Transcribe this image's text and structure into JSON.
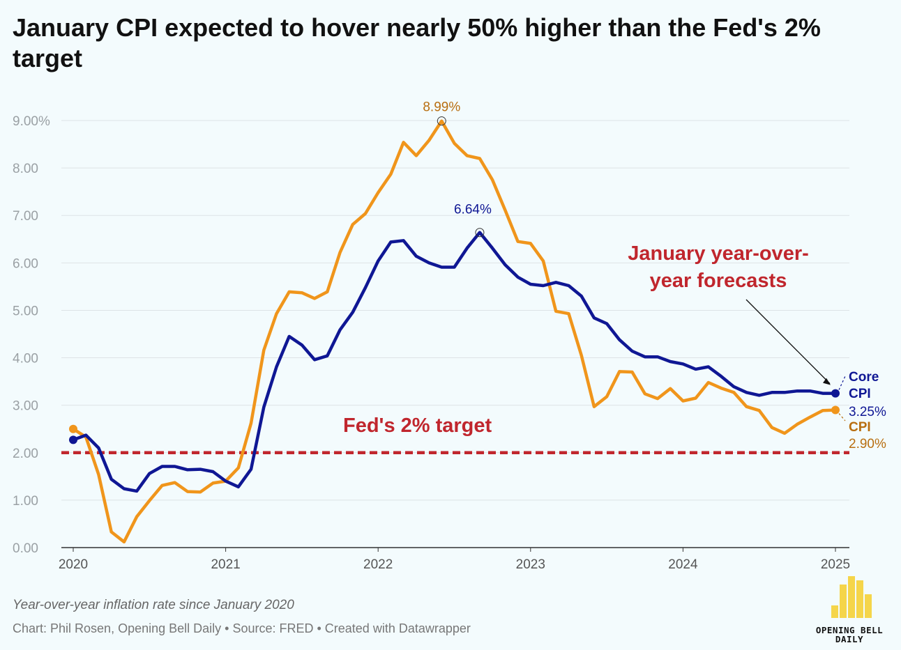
{
  "title": "January CPI expected to hover nearly 50% higher than the Fed's 2% target",
  "subtitle": "Year-over-year inflation rate since January 2020",
  "source": "Chart: Phil Rosen, Opening Bell Daily • Source: FRED • Created with Datawrapper",
  "logo": {
    "line1": "OPENING BELL",
    "line2": "DAILY"
  },
  "colors": {
    "cpi": "#f0951b",
    "core": "#0f1794",
    "target": "#c0262d",
    "text_gray": "#9aa0a4",
    "background": "#f3fbfd"
  },
  "chart_data": {
    "type": "line",
    "title": "January CPI expected to hover nearly 50% higher than the Fed's 2% target",
    "x_start": "2020-01",
    "x_ticks": [
      "2020",
      "2021",
      "2022",
      "2023",
      "2024",
      "2025"
    ],
    "y_ticks": [
      "0.00",
      "1.00",
      "2.00",
      "3.00",
      "4.00",
      "5.00",
      "6.00",
      "7.00",
      "8.00",
      "9.00%"
    ],
    "ylim": [
      0,
      9
    ],
    "grid": true,
    "series": [
      {
        "name": "CPI",
        "values": [
          2.5,
          2.33,
          1.54,
          0.33,
          0.12,
          0.65,
          0.99,
          1.31,
          1.37,
          1.18,
          1.17,
          1.36,
          1.4,
          1.68,
          2.62,
          4.16,
          4.93,
          5.39,
          5.37,
          5.25,
          5.39,
          6.22,
          6.81,
          7.04,
          7.48,
          7.87,
          8.54,
          8.26,
          8.58,
          8.99,
          8.52,
          8.26,
          8.2,
          7.75,
          7.11,
          6.45,
          6.41,
          6.04,
          4.98,
          4.93,
          4.05,
          2.97,
          3.18,
          3.71,
          3.7,
          3.24,
          3.14,
          3.35,
          3.09,
          3.15,
          3.48,
          3.36,
          3.27,
          2.97,
          2.89,
          2.53,
          2.41,
          2.6,
          2.75,
          2.89,
          2.9
        ],
        "end_label": "2.90%"
      },
      {
        "name": "Core CPI",
        "values": [
          2.27,
          2.37,
          2.1,
          1.44,
          1.24,
          1.19,
          1.56,
          1.71,
          1.71,
          1.64,
          1.65,
          1.6,
          1.4,
          1.28,
          1.65,
          2.96,
          3.81,
          4.45,
          4.27,
          3.96,
          4.04,
          4.59,
          4.96,
          5.48,
          6.04,
          6.44,
          6.47,
          6.14,
          6.0,
          5.91,
          5.91,
          6.31,
          6.64,
          6.31,
          5.96,
          5.7,
          5.55,
          5.52,
          5.59,
          5.52,
          5.3,
          4.84,
          4.72,
          4.38,
          4.14,
          4.02,
          4.02,
          3.92,
          3.87,
          3.76,
          3.81,
          3.61,
          3.39,
          3.27,
          3.21,
          3.27,
          3.27,
          3.3,
          3.3,
          3.25,
          3.25
        ],
        "end_label": "3.25%"
      }
    ],
    "reference_line": {
      "value": 2,
      "label": "Fed's 2% target"
    },
    "annotations": {
      "cpi_peak": {
        "label": "8.99%",
        "index": 29,
        "value": 8.99
      },
      "core_peak": {
        "label": "6.64%",
        "index": 32,
        "value": 6.64
      },
      "forecast_label": [
        "January year-over-",
        "year forecasts"
      ],
      "core_name_lines": [
        "Core",
        "CPI"
      ],
      "cpi_name": "CPI"
    }
  }
}
